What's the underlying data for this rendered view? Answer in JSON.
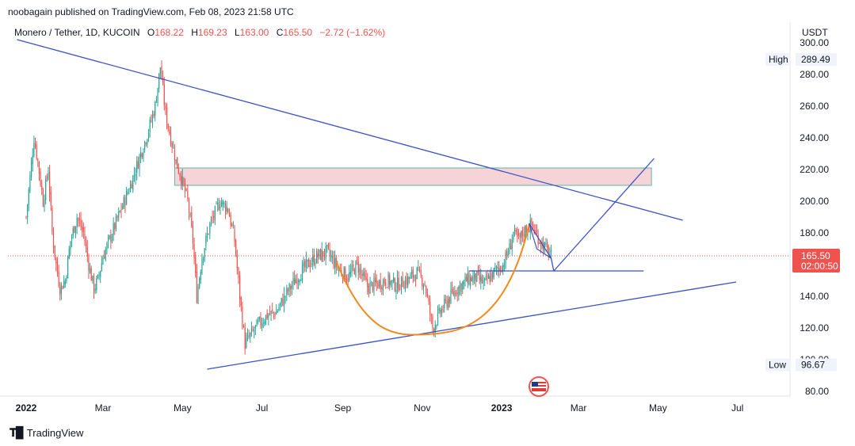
{
  "publisher": "noobagain published on TradingView.com, Feb 08, 2023 21:58 UTC",
  "legend": {
    "symbol": "Monero / Tether, 1D, KUCOIN",
    "o_label": "O",
    "o": "168.22",
    "h_label": "H",
    "h": "169.23",
    "l_label": "L",
    "l": "163.00",
    "c_label": "C",
    "c": "165.50",
    "change": "−2.72 (−1.62%)"
  },
  "brand": "TradingView",
  "colors": {
    "up": "#26a69a",
    "down": "#ef5350",
    "trendline": "#3851c8",
    "curve": "#f08a1c",
    "zone_fill": "#f6d3d7",
    "zone_stroke": "#5cb8a6",
    "price_badge": "#ef5350"
  },
  "chart_data": {
    "type": "candlestick",
    "currency": "USDT",
    "ylim": [
      80,
      300
    ],
    "yticks": [
      "80.00",
      "100.00",
      "120.00",
      "140.00",
      "160.00",
      "180.00",
      "200.00",
      "220.00",
      "240.00",
      "260.00",
      "280.00",
      "300.00"
    ],
    "xticks": [
      "2022",
      "Mar",
      "May",
      "Jul",
      "Sep",
      "Nov",
      "2023",
      "Mar",
      "May",
      "Jul"
    ],
    "high_label": "High",
    "high_value": "289.49",
    "low_label": "Low",
    "low_value": "96.67",
    "last_price": "165.50",
    "countdown": "02:00:50",
    "close_path": [
      [
        "2022-01-01",
        190
      ],
      [
        "2022-01-04",
        215
      ],
      [
        "2022-01-07",
        240
      ],
      [
        "2022-01-10",
        225
      ],
      [
        "2022-01-14",
        200
      ],
      [
        "2022-01-18",
        220
      ],
      [
        "2022-01-21",
        180
      ],
      [
        "2022-01-24",
        160
      ],
      [
        "2022-01-27",
        145
      ],
      [
        "2022-01-31",
        150
      ],
      [
        "2022-02-04",
        175
      ],
      [
        "2022-02-09",
        190
      ],
      [
        "2022-02-14",
        180
      ],
      [
        "2022-02-18",
        160
      ],
      [
        "2022-02-22",
        145
      ],
      [
        "2022-02-25",
        150
      ],
      [
        "2022-03-01",
        165
      ],
      [
        "2022-03-08",
        180
      ],
      [
        "2022-03-15",
        195
      ],
      [
        "2022-03-22",
        210
      ],
      [
        "2022-03-28",
        225
      ],
      [
        "2022-04-05",
        245
      ],
      [
        "2022-04-10",
        260
      ],
      [
        "2022-04-14",
        285
      ],
      [
        "2022-04-18",
        255
      ],
      [
        "2022-04-22",
        240
      ],
      [
        "2022-04-26",
        225
      ],
      [
        "2022-04-30",
        215
      ],
      [
        "2022-05-05",
        200
      ],
      [
        "2022-05-09",
        175
      ],
      [
        "2022-05-12",
        140
      ],
      [
        "2022-05-16",
        165
      ],
      [
        "2022-05-22",
        185
      ],
      [
        "2022-05-30",
        200
      ],
      [
        "2022-06-05",
        195
      ],
      [
        "2022-06-10",
        175
      ],
      [
        "2022-06-14",
        140
      ],
      [
        "2022-06-18",
        110
      ],
      [
        "2022-06-22",
        115
      ],
      [
        "2022-06-28",
        122
      ],
      [
        "2022-07-05",
        128
      ],
      [
        "2022-07-12",
        130
      ],
      [
        "2022-07-20",
        142
      ],
      [
        "2022-07-28",
        152
      ],
      [
        "2022-08-05",
        160
      ],
      [
        "2022-08-12",
        165
      ],
      [
        "2022-08-20",
        168
      ],
      [
        "2022-08-28",
        158
      ],
      [
        "2022-09-05",
        152
      ],
      [
        "2022-09-12",
        160
      ],
      [
        "2022-09-20",
        146
      ],
      [
        "2022-09-28",
        148
      ],
      [
        "2022-10-05",
        150
      ],
      [
        "2022-10-12",
        147
      ],
      [
        "2022-10-20",
        150
      ],
      [
        "2022-10-28",
        155
      ],
      [
        "2022-11-03",
        148
      ],
      [
        "2022-11-09",
        120
      ],
      [
        "2022-11-15",
        130
      ],
      [
        "2022-11-21",
        138
      ],
      [
        "2022-11-28",
        145
      ],
      [
        "2022-12-05",
        150
      ],
      [
        "2022-12-12",
        152
      ],
      [
        "2022-12-19",
        148
      ],
      [
        "2022-12-26",
        155
      ],
      [
        "2023-01-02",
        160
      ],
      [
        "2023-01-07",
        170
      ],
      [
        "2023-01-10",
        180
      ],
      [
        "2023-01-14",
        175
      ],
      [
        "2023-01-19",
        182
      ],
      [
        "2023-01-24",
        185
      ],
      [
        "2023-01-28",
        178
      ],
      [
        "2023-02-02",
        172
      ],
      [
        "2023-02-08",
        165.5
      ]
    ],
    "drawings": {
      "resistance_line": [
        [
          "2021-12-25",
          302
        ],
        [
          "2023-05-20",
          188
        ]
      ],
      "support_line": [
        [
          "2022-05-20",
          94
        ],
        [
          "2023-06-30",
          149
        ]
      ],
      "supply_zone": {
        "from": "2022-04-25",
        "to": "2023-04-26",
        "low": 210,
        "high": 221
      },
      "neckline": [
        [
          "2022-12-07",
          156
        ],
        [
          "2023-04-20",
          156
        ]
      ],
      "cup_curve": {
        "start": [
          "2022-08-27",
          162
        ],
        "bottom": [
          "2022-11-05",
          116
        ],
        "end": [
          "2023-01-22",
          185
        ]
      },
      "flag": [
        [
          "2023-01-22",
          186
        ],
        [
          "2023-02-08",
          164
        ],
        [
          "2023-01-28",
          170
        ]
      ],
      "projection": [
        [
          "2023-02-10",
          156
        ],
        [
          "2023-04-28",
          227
        ]
      ]
    }
  }
}
